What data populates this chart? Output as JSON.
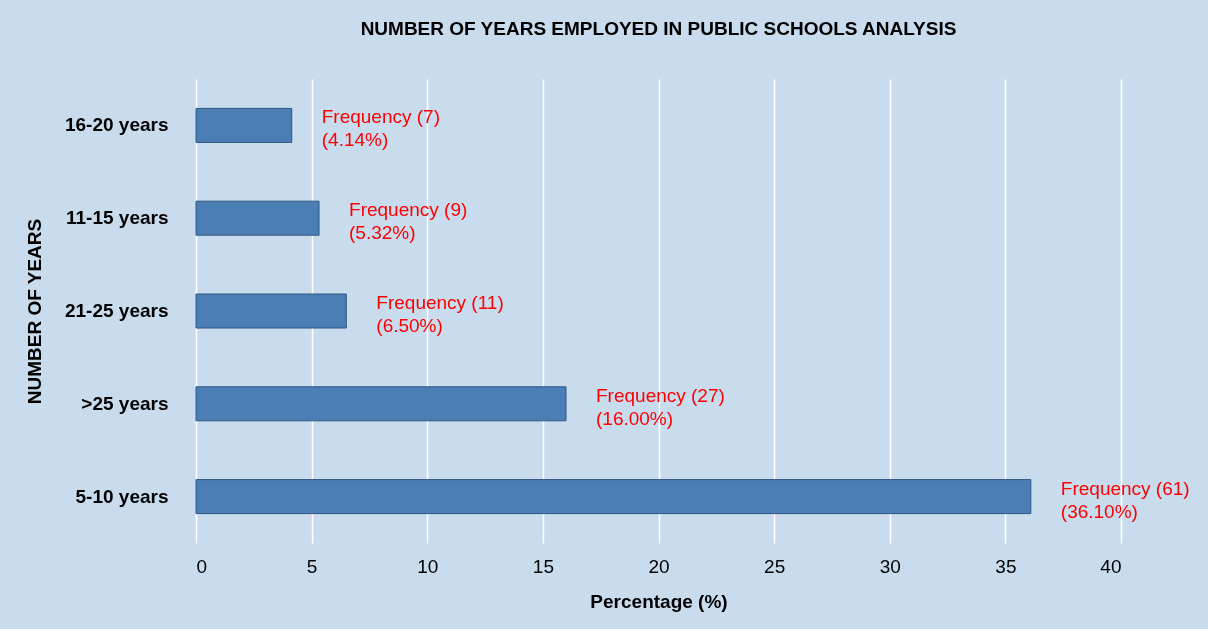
{
  "chart_data": {
    "type": "bar",
    "orientation": "horizontal",
    "title": "NUMBER OF YEARS EMPLOYED IN PUBLIC SCHOOLS ANALYSIS",
    "xlabel": "Percentage (%)",
    "ylabel": "NUMBER OF YEARS",
    "categories": [
      "16-20 years",
      "11-15 years",
      "21-25 years",
      ">25 years",
      "5-10 years"
    ],
    "values": [
      4.14,
      5.32,
      6.5,
      16.0,
      36.1
    ],
    "value_labels": [
      "Frequency (7)\n(4.14%)",
      "Frequency (9)\n(5.32%)",
      "Frequency (11)\n(6.50%)",
      "Frequency (27)\n(16.00%)",
      "Frequency (61)\n(36.10%)"
    ],
    "color": "#4a7eb5",
    "xlim": [
      0,
      40
    ],
    "xticks": [
      0,
      5,
      10,
      15,
      20,
      25,
      30,
      35,
      40
    ],
    "grid": "x"
  }
}
